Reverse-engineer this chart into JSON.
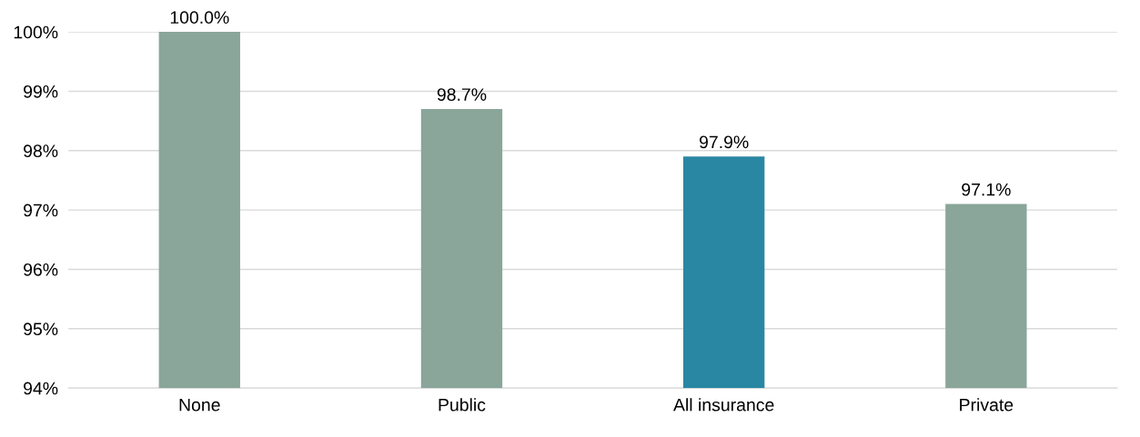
{
  "chart_data": {
    "type": "bar",
    "categories": [
      "None",
      "Public",
      "All insurance",
      "Private"
    ],
    "values": [
      100.0,
      98.7,
      97.9,
      97.1
    ],
    "colors": [
      "#8aa59a",
      "#8aa59a",
      "#2a87a3",
      "#8aa59a"
    ],
    "value_labels": [
      "100.0%",
      "98.7%",
      "97.9%",
      "97.1%"
    ],
    "ylim": [
      94,
      100
    ],
    "yticks": [
      {
        "value": 94,
        "label": "94%"
      },
      {
        "value": 95,
        "label": "95%"
      },
      {
        "value": 96,
        "label": "96%"
      },
      {
        "value": 97,
        "label": "97%"
      },
      {
        "value": 98,
        "label": "98%"
      },
      {
        "value": 99,
        "label": "99%"
      },
      {
        "value": 100,
        "label": "100%"
      }
    ],
    "grid": "y",
    "legend": false
  }
}
